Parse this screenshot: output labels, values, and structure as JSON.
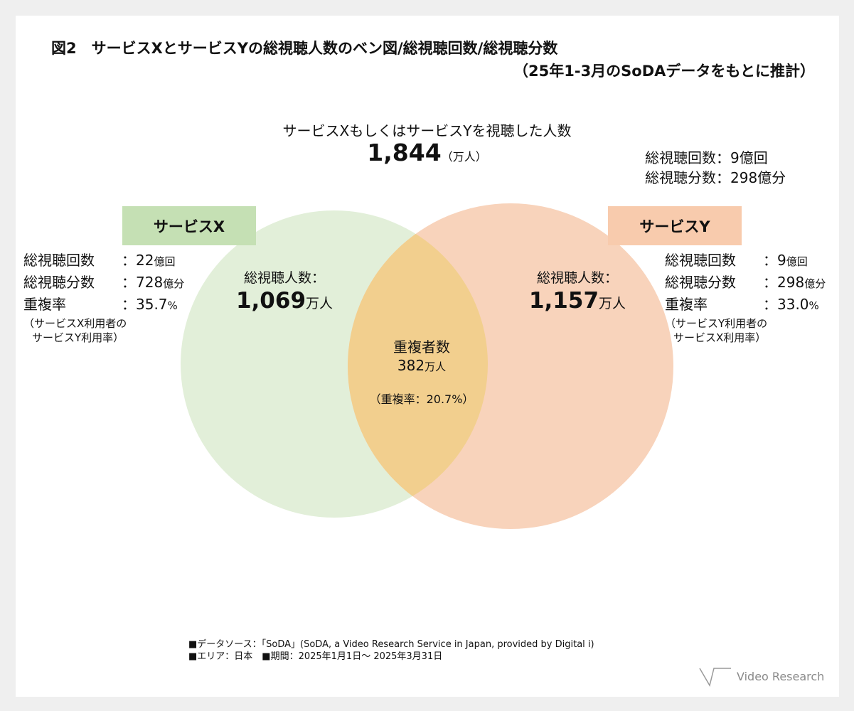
{
  "title": {
    "line1": "図2　サービスXとサービスYの総視聴人数のベン図/総視聴回数/総視聴分数",
    "line2": "（25年1-3月のSoDAデータをもとに推計）"
  },
  "total": {
    "label": "サービスXもしくはサービスYを視聴した人数",
    "value": "1,844",
    "unit": "（万人）",
    "views": "総視聴回数：9億回",
    "minutes": "総視聴分数：298億分"
  },
  "service_x": {
    "name": "サービスX",
    "color": "#c5e0b4",
    "circle_color": "#e2efd9",
    "viewers_label": "総視聴人数：",
    "viewers_value": "1,069",
    "viewers_unit": "万人",
    "views_key": "総視聴回数",
    "views_value": "：22",
    "views_unit": "億回",
    "minutes_key": "総視聴分数",
    "minutes_value": "：728",
    "minutes_unit": "億分",
    "overlap_key": "重複率",
    "overlap_value": "：35.7",
    "overlap_unit": "%",
    "note1": "（サービスX利用者の",
    "note2": "サービスY利用率）"
  },
  "service_y": {
    "name": "サービスY",
    "color": "#f8cbad",
    "circle_color": "#f8d3bb",
    "viewers_label": "総視聴人数：",
    "viewers_value": "1,157",
    "viewers_unit": "万人",
    "views_key": "総視聴回数",
    "views_value": "：9",
    "views_unit": "億回",
    "minutes_key": "総視聴分数",
    "minutes_value": "：298",
    "minutes_unit": "億分",
    "overlap_key": "重複率",
    "overlap_value": "：33.0",
    "overlap_unit": "%",
    "note1": "（サービスY利用者の",
    "note2": "サービスX利用率）"
  },
  "overlap": {
    "label": "重複者数",
    "value": "382",
    "unit": "万人",
    "rate": "（重複率：20.7%）",
    "color": "#f2cf8e"
  },
  "footer": {
    "source": "■データソース：「SoDA」(SoDA, a Video Research Service in Japan, provided by Digital i)",
    "area_period": "■エリア：日本　■期間：2025年1月1日～ 2025年3月31日",
    "logo": "Video Research"
  }
}
